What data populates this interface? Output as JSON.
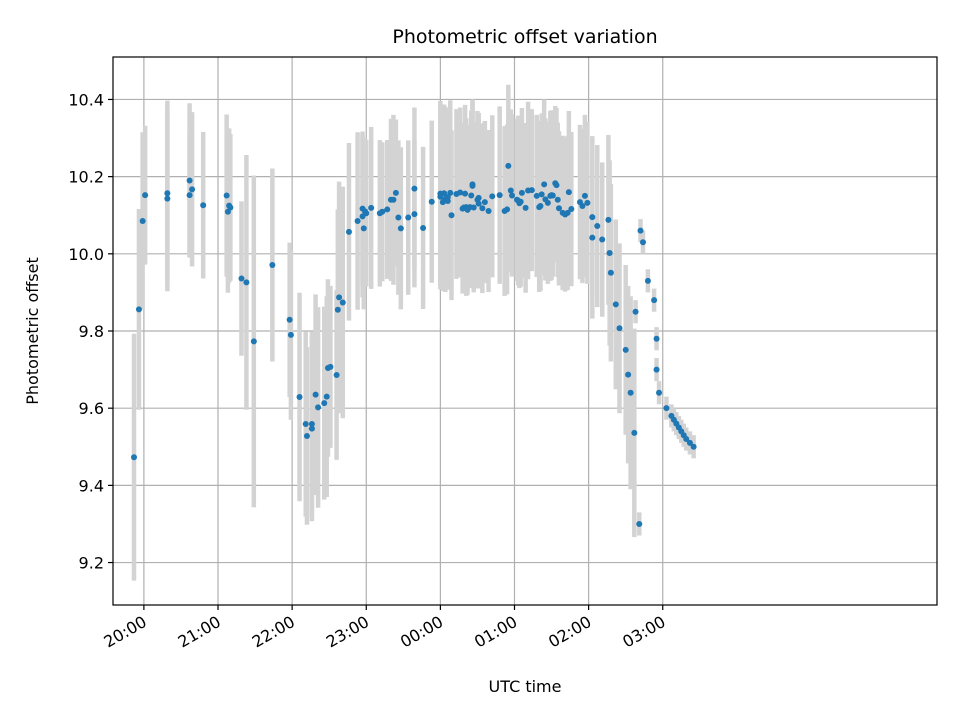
{
  "chart_data": {
    "type": "scatter",
    "title": "Photometric offset variation",
    "xlabel": "UTC time",
    "ylabel": "Photometric offset",
    "x_unit": "minutes",
    "xlim": [
      1175,
      1842
    ],
    "ylim": [
      9.09,
      10.51
    ],
    "x_ticks": [
      {
        "label": "20:00",
        "value": 1200
      },
      {
        "label": "21:00",
        "value": 1260
      },
      {
        "label": "22:00",
        "value": 1320
      },
      {
        "label": "23:00",
        "value": 1380
      },
      {
        "label": "00:00",
        "value": 1440
      },
      {
        "label": "01:00",
        "value": 1500
      },
      {
        "label": "02:00",
        "value": 1560
      },
      {
        "label": "03:00",
        "value": 1620
      }
    ],
    "y_ticks": [
      9.2,
      9.4,
      9.6,
      9.8,
      10.0,
      10.2,
      10.4
    ],
    "grid": true,
    "colors": {
      "points": "#1f77b4",
      "errorbars": "#d3d3d3",
      "grid": "#b0b0b0"
    },
    "series": [
      {
        "x": [
          1192,
          1196,
          1199,
          1201,
          1219,
          1219,
          1237,
          1237,
          1239,
          1248,
          1267,
          1268,
          1269,
          1270,
          1279,
          1283,
          1289,
          1304,
          1318,
          1319,
          1326,
          1331,
          1332,
          1336,
          1336,
          1339,
          1341,
          1346,
          1348,
          1349,
          1351,
          1356,
          1357,
          1358,
          1361,
          1366,
          1373,
          1377,
          1377,
          1378,
          1379,
          1380,
          1384,
          1391,
          1393,
          1397,
          1400,
          1402,
          1404,
          1406,
          1408,
          1414,
          1419,
          1419,
          1426,
          1433,
          1440,
          1440,
          1442,
          1443,
          1444,
          1445,
          1446,
          1446,
          1448,
          1449,
          1453,
          1456,
          1458,
          1459,
          1460,
          1461,
          1462,
          1464,
          1465,
          1466,
          1466,
          1467,
          1470,
          1471,
          1471,
          1474,
          1476,
          1479,
          1482,
          1488,
          1492,
          1494,
          1495,
          1497,
          1498,
          1502,
          1503,
          1504,
          1505,
          1506,
          1509,
          1511,
          1514,
          1518,
          1520,
          1521,
          1522,
          1524,
          1525,
          1527,
          1529,
          1530,
          1531,
          1533,
          1534,
          1535,
          1536,
          1539,
          1541,
          1543,
          1544,
          1546,
          1553,
          1555,
          1557,
          1559,
          1563,
          1563,
          1567,
          1571,
          1576,
          1577,
          1578,
          1582,
          1585,
          1590,
          1592,
          1594,
          1597,
          1598,
          1601,
          1602,
          1604,
          1608,
          1613,
          1615,
          1615,
          1617,
          1623,
          1627,
          1629,
          1631,
          1633,
          1635,
          1637,
          1639,
          1642,
          1645
        ],
        "y": [
          9.473,
          9.856,
          10.085,
          10.152,
          10.157,
          10.143,
          10.152,
          10.19,
          10.167,
          10.126,
          10.151,
          10.109,
          10.125,
          10.12,
          9.936,
          9.926,
          9.773,
          9.971,
          9.829,
          9.79,
          9.629,
          9.559,
          9.528,
          9.559,
          9.547,
          9.635,
          9.602,
          9.613,
          9.63,
          9.704,
          9.707,
          9.686,
          9.855,
          9.887,
          9.874,
          10.057,
          10.085,
          10.117,
          10.097,
          10.066,
          10.11,
          10.105,
          10.119,
          10.105,
          10.109,
          10.115,
          10.14,
          10.14,
          10.158,
          10.094,
          10.066,
          10.094,
          10.103,
          10.169,
          10.067,
          10.135,
          10.156,
          10.148,
          10.134,
          10.157,
          10.141,
          10.145,
          10.137,
          10.147,
          10.158,
          10.1,
          10.155,
          10.159,
          10.117,
          10.12,
          10.156,
          10.121,
          10.114,
          10.121,
          10.151,
          10.176,
          10.18,
          10.12,
          10.14,
          10.145,
          10.13,
          10.118,
          10.134,
          10.111,
          10.149,
          10.152,
          10.111,
          10.115,
          10.228,
          10.164,
          10.151,
          10.14,
          10.138,
          10.131,
          10.135,
          10.158,
          10.119,
          10.164,
          10.165,
          10.15,
          10.121,
          10.124,
          10.154,
          10.18,
          10.141,
          10.132,
          10.15,
          10.152,
          10.151,
          10.183,
          10.178,
          10.14,
          10.118,
          10.106,
          10.102,
          10.106,
          10.16,
          10.116,
          10.134,
          10.124,
          10.15,
          10.132,
          10.095,
          10.042,
          10.072,
          10.037,
          10.088,
          10.002,
          9.951,
          9.869,
          9.807,
          9.751,
          9.687,
          9.64,
          9.536,
          9.85,
          9.3,
          10.06,
          10.03,
          9.93,
          9.88,
          9.78,
          9.7,
          9.64,
          9.6,
          9.58,
          9.57,
          9.56,
          9.55,
          9.54,
          9.53,
          9.52,
          9.51,
          9.5
        ],
        "err": [
          0.32,
          0.26,
          0.23,
          0.18,
          0.24,
          0.24,
          0.16,
          0.2,
          0.2,
          0.19,
          0.21,
          0.21,
          0.2,
          0.19,
          0.2,
          0.33,
          0.43,
          0.25,
          0.2,
          0.22,
          0.27,
          0.24,
          0.23,
          0.24,
          0.24,
          0.26,
          0.26,
          0.25,
          0.26,
          0.23,
          0.21,
          0.22,
          0.26,
          0.3,
          0.3,
          0.23,
          0.23,
          0.2,
          0.21,
          0.21,
          0.19,
          0.19,
          0.21,
          0.19,
          0.18,
          0.18,
          0.21,
          0.22,
          0.19,
          0.2,
          0.21,
          0.2,
          0.19,
          0.21,
          0.21,
          0.21,
          0.24,
          0.24,
          0.23,
          0.23,
          0.24,
          0.23,
          0.23,
          0.23,
          0.24,
          0.22,
          0.22,
          0.22,
          0.22,
          0.22,
          0.23,
          0.23,
          0.22,
          0.21,
          0.22,
          0.22,
          0.22,
          0.22,
          0.23,
          0.22,
          0.22,
          0.22,
          0.21,
          0.21,
          0.21,
          0.23,
          0.22,
          0.22,
          0.21,
          0.21,
          0.21,
          0.21,
          0.22,
          0.22,
          0.22,
          0.22,
          0.22,
          0.23,
          0.21,
          0.21,
          0.22,
          0.22,
          0.21,
          0.22,
          0.21,
          0.21,
          0.22,
          0.22,
          0.21,
          0.2,
          0.2,
          0.2,
          0.2,
          0.2,
          0.2,
          0.2,
          0.21,
          0.2,
          0.2,
          0.2,
          0.21,
          0.21,
          0.21,
          0.21,
          0.21,
          0.2,
          0.22,
          0.24,
          0.23,
          0.22,
          0.22,
          0.22,
          0.23,
          0.25,
          0.27,
          0.03,
          0.03,
          0.03,
          0.03,
          0.03,
          0.03,
          0.03,
          0.03,
          0.03,
          0.03,
          0.03,
          0.03,
          0.03,
          0.03,
          0.03,
          0.03,
          0.03,
          0.03,
          0.03
        ]
      }
    ]
  }
}
